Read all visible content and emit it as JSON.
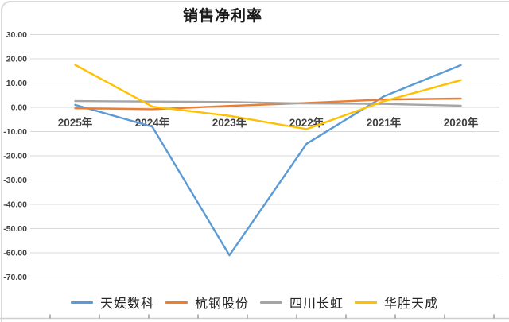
{
  "chart_data": {
    "type": "line",
    "title": "销售净利率",
    "categories": [
      "2025年",
      "2024年",
      "2023年",
      "2022年",
      "2021年",
      "2020年"
    ],
    "series": [
      {
        "name": "天娱数科",
        "color": "#5B9BD5",
        "values": [
          1.0,
          -8.0,
          -61.0,
          -15.0,
          4.5,
          17.4
        ]
      },
      {
        "name": "杭钢股份",
        "color": "#ED7D31",
        "values": [
          -0.4,
          -0.8,
          0.6,
          1.8,
          3.2,
          3.6
        ]
      },
      {
        "name": "四川长虹",
        "color": "#A5A5A5",
        "values": [
          2.6,
          2.4,
          2.2,
          1.6,
          1.4,
          0.7
        ]
      },
      {
        "name": "华胜天成",
        "color": "#FFC000",
        "values": [
          17.5,
          0.3,
          -3.5,
          -9.0,
          2.5,
          11.2
        ]
      }
    ],
    "ylim": [
      -70,
      30
    ],
    "ytick_step": 10,
    "ytick_labels": [
      "30.00",
      "20.00",
      "10.00",
      "0.00",
      "-10.00",
      "-20.00",
      "-30.00",
      "-40.00",
      "-50.00",
      "-60.00",
      "-70.00"
    ],
    "grid": true,
    "gridline_color": "#d9d9d9",
    "axis_label_color": "#404040",
    "legend_position": "bottom"
  }
}
